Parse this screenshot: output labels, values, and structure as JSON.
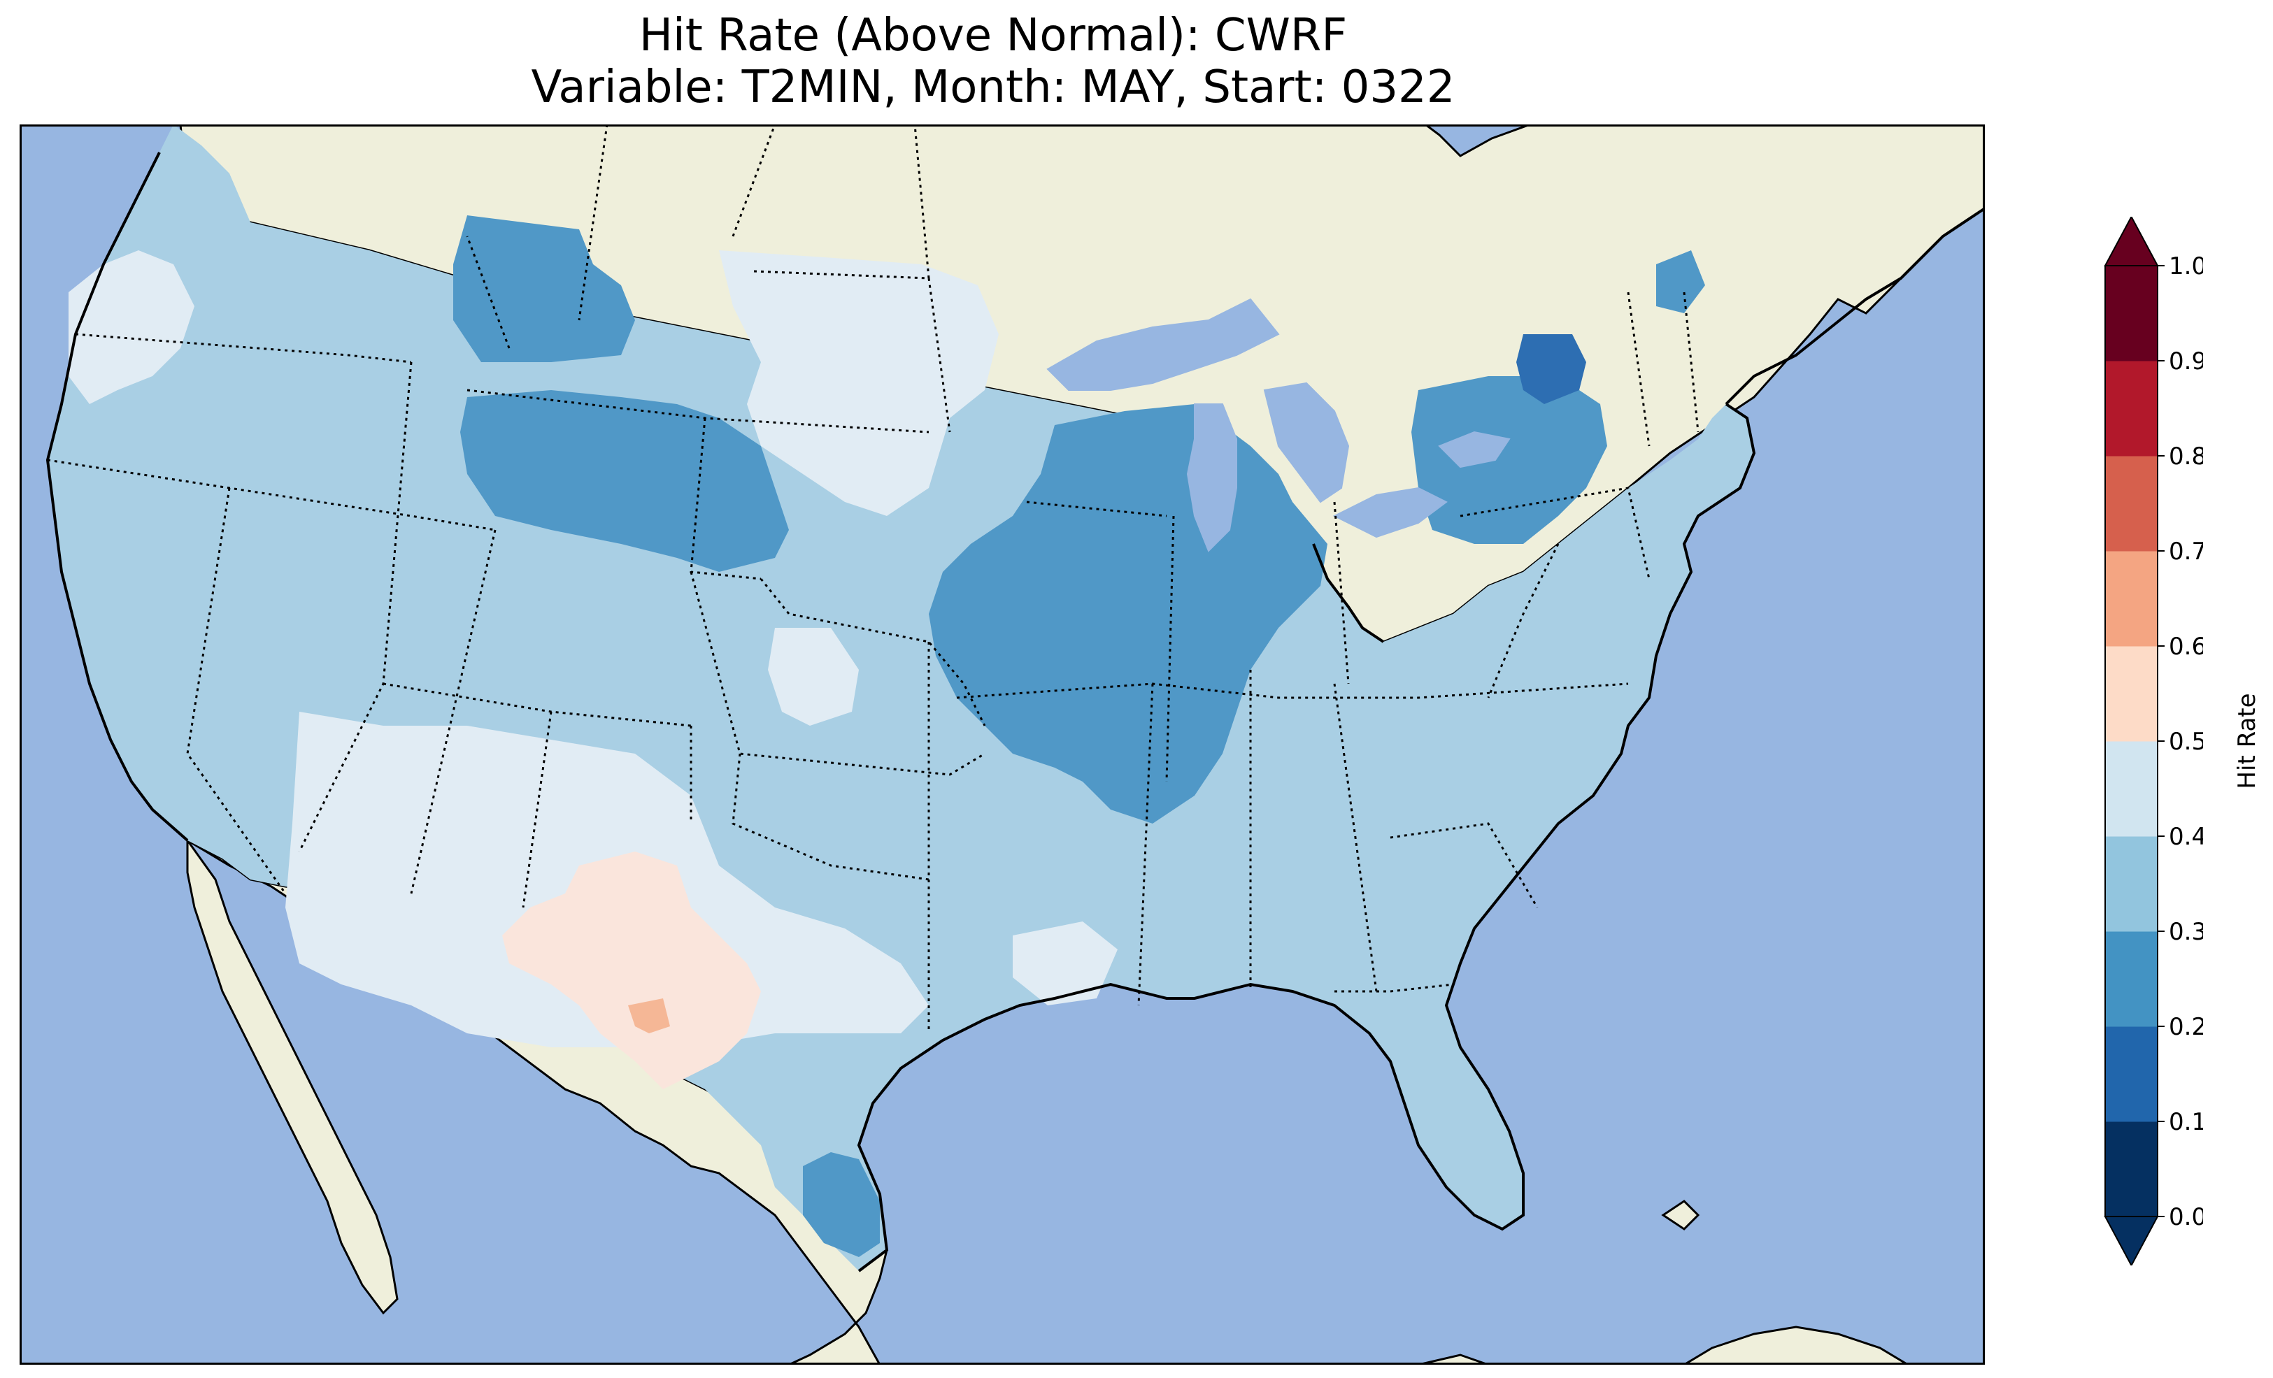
{
  "title": {
    "line1": "Hit Rate (Above Normal): CWRF",
    "line2": "Variable: T2MIN, Month: MAY, Start: 0322"
  },
  "colors": {
    "ocean": "#97b6e1",
    "land": "#efefdb",
    "coastline": "#000000",
    "borders": "#000000"
  },
  "colorbar": {
    "label": "Hit Rate",
    "ticks": [
      "0.0",
      "0.1",
      "0.2",
      "0.3",
      "0.4",
      "0.5",
      "0.6",
      "0.7",
      "0.8",
      "0.9",
      "1.0"
    ],
    "bins": [
      {
        "range": [
          0.0,
          0.1
        ],
        "color": "#053061"
      },
      {
        "range": [
          0.1,
          0.2
        ],
        "color": "#2166ac"
      },
      {
        "range": [
          0.2,
          0.3
        ],
        "color": "#4393c3"
      },
      {
        "range": [
          0.3,
          0.4
        ],
        "color": "#92c5de"
      },
      {
        "range": [
          0.4,
          0.5
        ],
        "color": "#d1e5f0"
      },
      {
        "range": [
          0.5,
          0.6
        ],
        "color": "#fddbc7"
      },
      {
        "range": [
          0.6,
          0.7
        ],
        "color": "#f4a582"
      },
      {
        "range": [
          0.7,
          0.8
        ],
        "color": "#d6604d"
      },
      {
        "range": [
          0.8,
          0.9
        ],
        "color": "#b2182b"
      },
      {
        "range": [
          0.9,
          1.0
        ],
        "color": "#67001f"
      }
    ],
    "extend": "both",
    "under_color": "#053061",
    "over_color": "#67001f"
  },
  "map_regions": [
    {
      "name": "us-field-0.3-0.4",
      "bin": 3,
      "color": "#a9cfe4"
    },
    {
      "name": "us-field-0.4-0.5",
      "bin": 4,
      "color": "#e1ecf4"
    },
    {
      "name": "us-field-0.2-0.3",
      "bin": 2,
      "color": "#5098c7"
    },
    {
      "name": "us-field-0.1-0.2",
      "bin": 1,
      "color": "#2d6eb2"
    },
    {
      "name": "us-field-0.5-0.6",
      "bin": 5,
      "color": "#fae5dc"
    },
    {
      "name": "us-field-0.6-0.7",
      "bin": 6,
      "color": "#f5b796"
    }
  ]
}
